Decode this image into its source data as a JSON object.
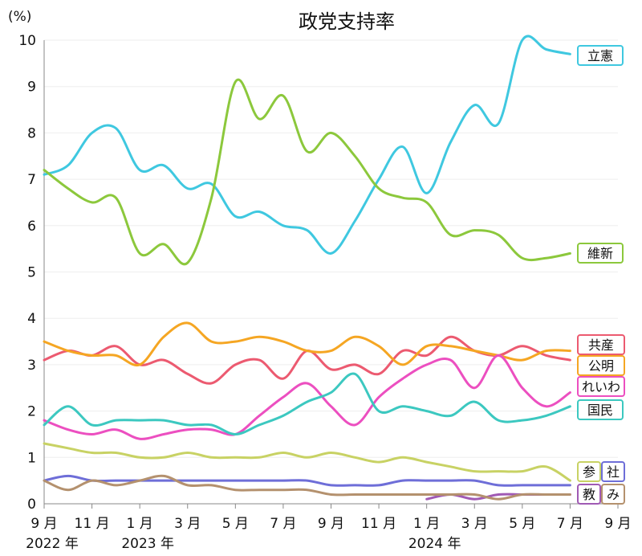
{
  "chart_data": {
    "type": "line",
    "title": "政党支持率",
    "ylabel": "(%)",
    "ylim": [
      0,
      10
    ],
    "y_ticks": [
      "0",
      "1",
      "2",
      "3",
      "4",
      "5",
      "6",
      "7",
      "8",
      "9",
      "10"
    ],
    "xlim": [
      "2022-09",
      "2024-09"
    ],
    "x_ticks": [
      {
        "x": "2022-09",
        "label": "9 月"
      },
      {
        "x": "2022-11",
        "label": "11 月"
      },
      {
        "x": "2023-01",
        "label": "1 月"
      },
      {
        "x": "2023-03",
        "label": "3 月"
      },
      {
        "x": "2023-05",
        "label": "5 月"
      },
      {
        "x": "2023-07",
        "label": "7 月"
      },
      {
        "x": "2023-09",
        "label": "9 月"
      },
      {
        "x": "2023-11",
        "label": "11 月"
      },
      {
        "x": "2024-01",
        "label": "1 月"
      },
      {
        "x": "2024-03",
        "label": "3 月"
      },
      {
        "x": "2024-05",
        "label": "5 月"
      },
      {
        "x": "2024-07",
        "label": "7 月"
      },
      {
        "x": "2024-09",
        "label": "9 月"
      }
    ],
    "year_labels": [
      {
        "x": "2022-09",
        "label": "2022 年"
      },
      {
        "x": "2023-01",
        "label": "2023 年"
      },
      {
        "x": "2024-01",
        "label": "2024 年"
      }
    ],
    "x": [
      "2022-09",
      "2022-10",
      "2022-11",
      "2022-12",
      "2023-01",
      "2023-02",
      "2023-03",
      "2023-04",
      "2023-05",
      "2023-06",
      "2023-07",
      "2023-08",
      "2023-09",
      "2023-10",
      "2023-11",
      "2023-12",
      "2024-01",
      "2024-02",
      "2024-03",
      "2024-04",
      "2024-05",
      "2024-06",
      "2024-07"
    ],
    "series": [
      {
        "name": "立憲",
        "color": "#3fc8e0",
        "values": [
          7.1,
          7.3,
          8.0,
          8.1,
          7.2,
          7.3,
          6.8,
          6.9,
          6.2,
          6.3,
          6.0,
          5.9,
          5.4,
          6.1,
          7.0,
          7.7,
          6.7,
          7.8,
          8.6,
          8.2,
          10.0,
          9.8,
          9.7
        ]
      },
      {
        "name": "維新",
        "color": "#8cc83c",
        "values": [
          7.2,
          6.8,
          6.5,
          6.6,
          5.4,
          5.6,
          5.2,
          6.6,
          9.1,
          8.3,
          8.8,
          7.6,
          8.0,
          7.5,
          6.8,
          6.6,
          6.5,
          5.8,
          5.9,
          5.8,
          5.3,
          5.3,
          5.4
        ]
      },
      {
        "name": "共産",
        "color": "#ec5a70",
        "values": [
          3.1,
          3.3,
          3.2,
          3.4,
          3.0,
          3.1,
          2.8,
          2.6,
          3.0,
          3.1,
          2.7,
          3.3,
          2.9,
          3.0,
          2.8,
          3.3,
          3.2,
          3.6,
          3.3,
          3.2,
          3.4,
          3.2,
          3.1
        ]
      },
      {
        "name": "公明",
        "color": "#f5a623",
        "values": [
          3.5,
          3.3,
          3.2,
          3.2,
          3.0,
          3.6,
          3.9,
          3.5,
          3.5,
          3.6,
          3.5,
          3.3,
          3.3,
          3.6,
          3.4,
          3.0,
          3.4,
          3.4,
          3.3,
          3.2,
          3.1,
          3.3,
          3.3
        ]
      },
      {
        "name": "れいわ",
        "color": "#ec4fc0",
        "values": [
          1.8,
          1.6,
          1.5,
          1.6,
          1.4,
          1.5,
          1.6,
          1.6,
          1.5,
          1.9,
          2.3,
          2.6,
          2.1,
          1.7,
          2.3,
          2.7,
          3.0,
          3.1,
          2.5,
          3.2,
          2.5,
          2.1,
          2.4
        ]
      },
      {
        "name": "国民",
        "color": "#3cc8c0",
        "values": [
          1.7,
          2.1,
          1.7,
          1.8,
          1.8,
          1.8,
          1.7,
          1.7,
          1.5,
          1.7,
          1.9,
          2.2,
          2.4,
          2.8,
          2.0,
          2.1,
          2.0,
          1.9,
          2.2,
          1.8,
          1.8,
          1.9,
          2.1
        ]
      },
      {
        "name": "参",
        "color": "#c8d264",
        "values": [
          1.3,
          1.2,
          1.1,
          1.1,
          1.0,
          1.0,
          1.1,
          1.0,
          1.0,
          1.0,
          1.1,
          1.0,
          1.1,
          1.0,
          0.9,
          1.0,
          0.9,
          0.8,
          0.7,
          0.7,
          0.7,
          0.8,
          0.5
        ]
      },
      {
        "name": "社",
        "color": "#6e6ed8",
        "values": [
          0.5,
          0.6,
          0.5,
          0.5,
          0.5,
          0.5,
          0.5,
          0.5,
          0.5,
          0.5,
          0.5,
          0.5,
          0.4,
          0.4,
          0.4,
          0.5,
          0.5,
          0.5,
          0.5,
          0.4,
          0.4,
          0.4,
          0.4
        ]
      },
      {
        "name": "教",
        "color": "#a05ab4",
        "values": [
          null,
          null,
          null,
          null,
          null,
          null,
          null,
          null,
          null,
          null,
          null,
          null,
          null,
          null,
          null,
          null,
          0.1,
          0.2,
          0.1,
          0.2,
          0.2,
          0.2,
          0.2
        ]
      },
      {
        "name": "み",
        "color": "#b4916e",
        "values": [
          0.5,
          0.3,
          0.5,
          0.4,
          0.5,
          0.6,
          0.4,
          0.4,
          0.3,
          0.3,
          0.3,
          0.3,
          0.2,
          0.2,
          0.2,
          0.2,
          0.2,
          0.2,
          0.2,
          0.1,
          0.2,
          0.2,
          0.2
        ]
      }
    ],
    "legend_placement": "right, at line ends"
  }
}
